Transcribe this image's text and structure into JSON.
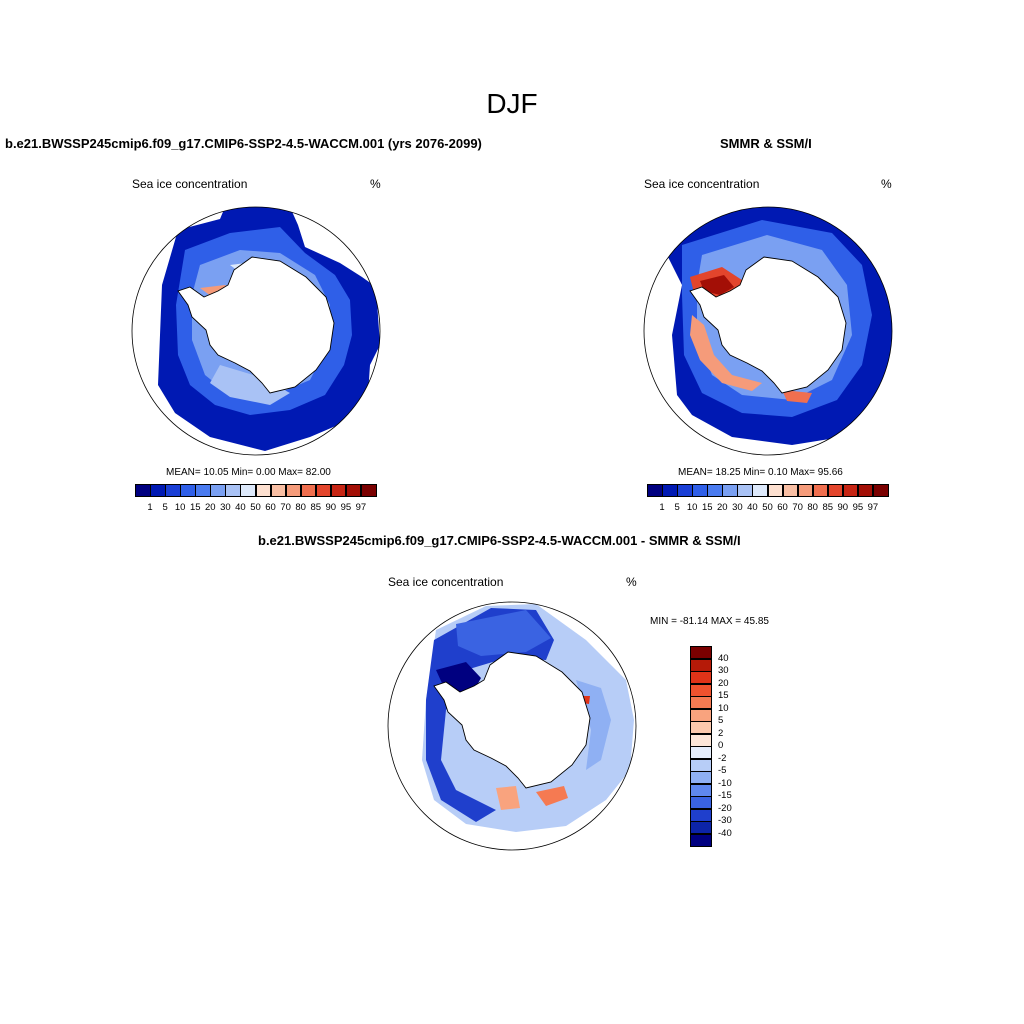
{
  "figure": {
    "title": "DJF"
  },
  "panels": [
    {
      "case_title": "b.e21.BWSSP245cmip6.f09_g17.CMIP6-SSP2-4.5-WACCM.001 (yrs 2076-2099)",
      "variable_label": "Sea ice concentration",
      "units": "%",
      "stats": "MEAN=  10.05  Min=   0.00  Max=  82.00"
    },
    {
      "case_title": "SMMR & SSM/I",
      "variable_label": "Sea ice concentration",
      "units": "%",
      "stats": "MEAN=  18.25  Min=   0.10  Max=  95.66"
    },
    {
      "case_title": "b.e21.BWSSP245cmip6.f09_g17.CMIP6-SSP2-4.5-WACCM.001 - SMMR & SSM/I",
      "variable_label": "Sea ice concentration",
      "units": "%",
      "stats": "MIN = -81.14 MAX =  45.85"
    }
  ],
  "colorbar_concentration": {
    "ticks": [
      "1",
      "5",
      "10",
      "15",
      "20",
      "30",
      "40",
      "50",
      "60",
      "70",
      "80",
      "85",
      "90",
      "95",
      "97"
    ],
    "colors": [
      "#000080",
      "#0019b3",
      "#1a3fd6",
      "#2f5fe8",
      "#4a7bf0",
      "#7aa0f2",
      "#a9c2f5",
      "#dde9fb",
      "#fde0d0",
      "#f9bfa4",
      "#f59b7a",
      "#f06f4f",
      "#e3452c",
      "#c62514",
      "#a30f06",
      "#7a0000"
    ]
  },
  "colorbar_difference": {
    "ticks": [
      "40",
      "30",
      "20",
      "15",
      "10",
      "5",
      "2",
      "0",
      "-2",
      "-5",
      "-10",
      "-15",
      "-20",
      "-30",
      "-40"
    ],
    "colors": [
      "#7a0000",
      "#b51a08",
      "#e03318",
      "#f0522e",
      "#f57a52",
      "#f9a37e",
      "#fcc9ad",
      "#fde6d8",
      "#e6eefc",
      "#b7cdf7",
      "#8fb0f3",
      "#5f88ee",
      "#3a63e2",
      "#1f3fcc",
      "#0c24a8",
      "#000080"
    ]
  },
  "legend_colors": {
    "land": "#ffffff",
    "coastline": "#000000",
    "map_outline": "#000000"
  }
}
